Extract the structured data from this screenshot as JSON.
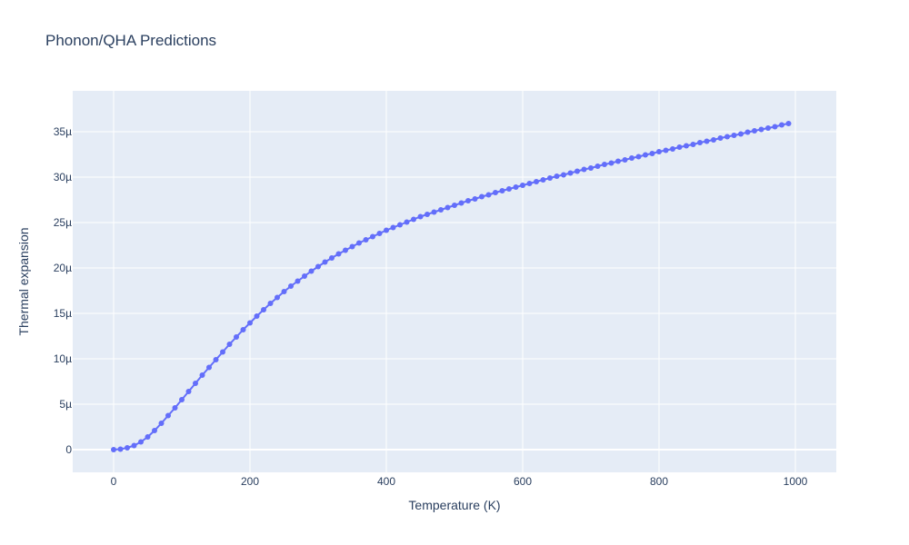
{
  "chart_data": {
    "type": "line",
    "title": "Phonon/QHA Predictions",
    "xlabel": "Temperature (K)",
    "ylabel": "Thermal expansion",
    "xlim": [
      -60,
      1060
    ],
    "ylim": [
      -2.5e-06,
      3.95e-05
    ],
    "x_ticks": [
      0,
      200,
      400,
      600,
      800,
      1000
    ],
    "x_tick_labels": [
      "0",
      "200",
      "400",
      "600",
      "800",
      "1000"
    ],
    "y_ticks": [
      0,
      5e-06,
      1e-05,
      1.5e-05,
      2e-05,
      2.5e-05,
      3e-05,
      3.5e-05
    ],
    "y_tick_labels": [
      "0",
      "5µ",
      "10µ",
      "15µ",
      "20µ",
      "25µ",
      "30µ",
      "35µ"
    ],
    "grid": true,
    "plot_bgcolor": "#E5ECF6",
    "series": [
      {
        "color": "#636efa",
        "mode": "lines+markers",
        "x": [
          0,
          10,
          20,
          30,
          40,
          50,
          60,
          70,
          80,
          90,
          100,
          110,
          120,
          130,
          140,
          150,
          160,
          170,
          180,
          190,
          200,
          210,
          220,
          230,
          240,
          250,
          260,
          270,
          280,
          290,
          300,
          310,
          320,
          330,
          340,
          350,
          360,
          370,
          380,
          390,
          400,
          410,
          420,
          430,
          440,
          450,
          460,
          470,
          480,
          490,
          500,
          510,
          520,
          530,
          540,
          550,
          560,
          570,
          580,
          590,
          600,
          610,
          620,
          630,
          640,
          650,
          660,
          670,
          680,
          690,
          700,
          710,
          720,
          730,
          740,
          750,
          760,
          770,
          780,
          790,
          800,
          810,
          820,
          830,
          840,
          850,
          860,
          870,
          880,
          890,
          900,
          910,
          920,
          930,
          940,
          950,
          960,
          970,
          980,
          990
        ],
        "y": [
          0,
          5e-08,
          2e-07,
          4.5e-07,
          8.5e-07,
          1.4e-06,
          2.1e-06,
          2.9e-06,
          3.75e-06,
          4.6e-06,
          5.5e-06,
          6.4e-06,
          7.3e-06,
          8.2e-06,
          9.05e-06,
          9.9e-06,
          1.075e-05,
          1.16e-05,
          1.24e-05,
          1.32e-05,
          1.395e-05,
          1.47e-05,
          1.54e-05,
          1.61e-05,
          1.675e-05,
          1.74e-05,
          1.8e-05,
          1.855e-05,
          1.91e-05,
          1.965e-05,
          2.015e-05,
          2.065e-05,
          2.11e-05,
          2.155e-05,
          2.195e-05,
          2.235e-05,
          2.275e-05,
          2.31e-05,
          2.345e-05,
          2.38e-05,
          2.415e-05,
          2.445e-05,
          2.475e-05,
          2.505e-05,
          2.535e-05,
          2.565e-05,
          2.59e-05,
          2.615e-05,
          2.64e-05,
          2.665e-05,
          2.69e-05,
          2.715e-05,
          2.74e-05,
          2.76e-05,
          2.785e-05,
          2.805e-05,
          2.83e-05,
          2.85e-05,
          2.87e-05,
          2.89e-05,
          2.91e-05,
          2.93e-05,
          2.95e-05,
          2.97e-05,
          2.99e-05,
          3.01e-05,
          3.025e-05,
          3.045e-05,
          3.065e-05,
          3.085e-05,
          3.1e-05,
          3.12e-05,
          3.14e-05,
          3.155e-05,
          3.175e-05,
          3.19e-05,
          3.21e-05,
          3.225e-05,
          3.245e-05,
          3.26e-05,
          3.28e-05,
          3.295e-05,
          3.31e-05,
          3.33e-05,
          3.345e-05,
          3.36e-05,
          3.38e-05,
          3.395e-05,
          3.41e-05,
          3.43e-05,
          3.445e-05,
          3.46e-05,
          3.475e-05,
          3.495e-05,
          3.51e-05,
          3.525e-05,
          3.54e-05,
          3.555e-05,
          3.575e-05,
          3.59e-05
        ]
      }
    ]
  }
}
